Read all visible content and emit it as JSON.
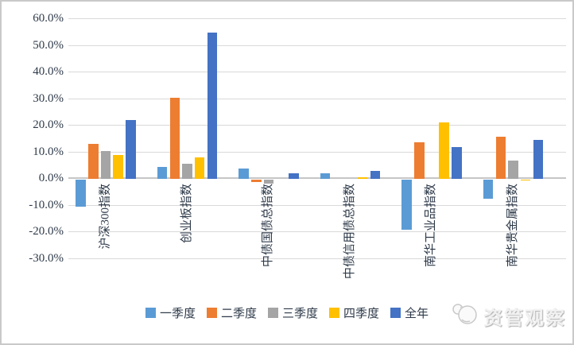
{
  "chart_data": {
    "type": "bar",
    "title": "",
    "categories": [
      "沪深300指数",
      "创业板指数",
      "中债国债总指数",
      "中债信用债总指数",
      "南华工业品指数",
      "南华贵金属指数"
    ],
    "series": [
      {
        "name": "一季度",
        "color": "#5B9BD5",
        "values": [
          -10.3,
          4.3,
          3.9,
          2.0,
          -18.8,
          -7.2
        ]
      },
      {
        "name": "二季度",
        "color": "#ED7D31",
        "values": [
          13.0,
          30.3,
          -1.0,
          0,
          13.5,
          15.8
        ]
      },
      {
        "name": "三季度",
        "color": "#A5A5A5",
        "values": [
          10.2,
          5.6,
          -1.5,
          0,
          0,
          6.8
        ]
      },
      {
        "name": "四季度",
        "color": "#FFC000",
        "values": [
          8.8,
          8.0,
          0,
          0.4,
          21.0,
          -0.5
        ]
      },
      {
        "name": "全年",
        "color": "#4472C4",
        "values": [
          22.0,
          54.6,
          1.9,
          2.9,
          11.9,
          14.6
        ]
      }
    ],
    "y_ticks": [
      "60.0%",
      "50.0%",
      "40.0%",
      "30.0%",
      "20.0%",
      "10.0%",
      "0.0%",
      "-10.0%",
      "-20.0%",
      "-30.0%"
    ],
    "ylim": [
      -30,
      60
    ],
    "y_step": 10,
    "grid": true,
    "legend_position": "bottom"
  },
  "watermark": {
    "text": "资管观察"
  },
  "colors": {
    "gridline": "#d9d9d9",
    "zero_axis": "#c6c6c6",
    "tick_text": "#2e3a49",
    "frame_border": "#c9c9c9"
  }
}
